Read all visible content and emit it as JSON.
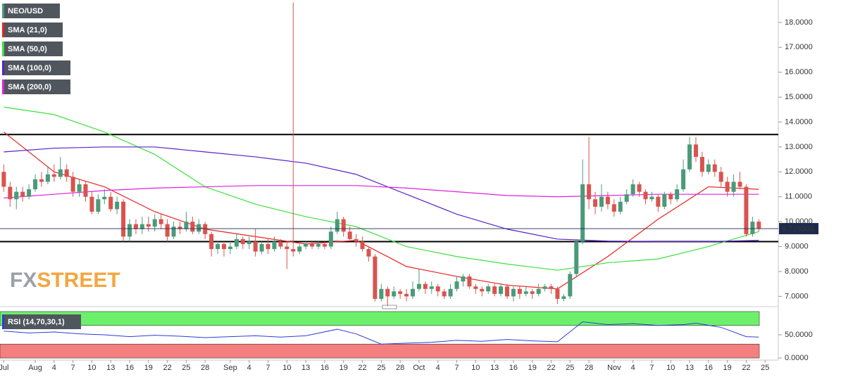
{
  "chart_data": [
    {
      "type": "candlestick",
      "name": "NEO/USD",
      "open": [
        12.0,
        11.4,
        10.9,
        11.2,
        11.0,
        11.3,
        11.7,
        11.6,
        11.9,
        11.8,
        12.1,
        11.8,
        11.2,
        11.5,
        11.0,
        10.4,
        10.9,
        11.0,
        10.5,
        10.8,
        9.4,
        9.9,
        9.7,
        9.9,
        9.8,
        10.1,
        9.9,
        9.4,
        9.8,
        9.7,
        10.0,
        9.6,
        9.9,
        9.5,
        8.9,
        9.1,
        8.9,
        9.0,
        9.3,
        9.1,
        9.2,
        8.8,
        9.1,
        8.9,
        9.2,
        9.0,
        8.9,
        8.8,
        9.0,
        9.1,
        9.0,
        9.1,
        9.0,
        9.6,
        10.1,
        9.6,
        9.3,
        9.2,
        8.9,
        8.6,
        6.9,
        7.3,
        7.0,
        7.2,
        7.1,
        7.0,
        7.3,
        7.5,
        7.3,
        7.4,
        7.2,
        7.0,
        7.3,
        7.6,
        7.8,
        7.4,
        7.3,
        7.2,
        7.4,
        7.1,
        7.4,
        7.0,
        7.3,
        7.1,
        7.2,
        7.1,
        7.3,
        7.4,
        7.3,
        6.9,
        7.0,
        7.9,
        9.2,
        11.5,
        10.9,
        10.6,
        11.0,
        10.7,
        10.4,
        10.8,
        11.1,
        11.5,
        11.2,
        10.9,
        11.0,
        10.6,
        11.1,
        10.9,
        11.3,
        12.1,
        13.1,
        12.6,
        12.0,
        12.3,
        12.0,
        11.6,
        11.2,
        11.6,
        11.4,
        9.5,
        10.0
      ],
      "high": [
        12.3,
        11.6,
        11.4,
        11.4,
        11.5,
        11.9,
        12.0,
        12.2,
        12.3,
        12.6,
        12.3,
        12.0,
        11.7,
        11.6,
        11.2,
        11.1,
        11.3,
        11.2,
        11.0,
        10.9,
        10.1,
        10.1,
        10.2,
        10.2,
        10.3,
        10.3,
        10.1,
        10.0,
        10.0,
        10.4,
        10.2,
        10.1,
        10.0,
        9.6,
        9.2,
        9.2,
        9.2,
        9.5,
        9.4,
        9.4,
        9.7,
        9.2,
        9.3,
        9.4,
        9.3,
        9.2,
        18.8,
        9.1,
        9.2,
        9.2,
        9.2,
        9.2,
        9.8,
        10.4,
        10.2,
        9.8,
        9.5,
        9.4,
        9.0,
        8.7,
        7.5,
        7.4,
        7.4,
        7.3,
        7.3,
        7.6,
        8.1,
        7.6,
        7.6,
        7.5,
        7.3,
        7.5,
        7.8,
        7.9,
        7.9,
        7.5,
        7.4,
        7.5,
        7.5,
        7.5,
        7.5,
        7.4,
        7.4,
        7.4,
        7.3,
        7.5,
        7.5,
        7.5,
        7.4,
        7.1,
        8.0,
        9.3,
        12.5,
        13.4,
        11.2,
        11.5,
        11.2,
        10.9,
        11.0,
        11.3,
        11.7,
        11.6,
        11.3,
        11.2,
        11.1,
        11.2,
        11.2,
        11.5,
        12.5,
        13.4,
        13.4,
        12.8,
        12.5,
        12.5,
        12.2,
        11.8,
        11.9,
        12.0,
        11.5,
        10.2,
        10.1
      ],
      "low": [
        11.2,
        10.6,
        10.5,
        10.8,
        10.9,
        11.2,
        11.4,
        11.5,
        11.6,
        11.7,
        11.6,
        11.0,
        11.0,
        10.8,
        10.3,
        10.3,
        10.7,
        10.4,
        10.3,
        9.2,
        9.2,
        9.5,
        9.5,
        9.6,
        9.6,
        9.7,
        9.2,
        9.3,
        9.5,
        9.6,
        9.5,
        9.5,
        9.3,
        8.6,
        8.7,
        8.6,
        8.7,
        8.9,
        8.9,
        8.9,
        8.6,
        8.7,
        8.7,
        8.8,
        8.9,
        8.1,
        8.6,
        8.7,
        8.9,
        8.9,
        8.9,
        8.9,
        8.9,
        9.5,
        9.4,
        9.2,
        9.0,
        8.8,
        8.4,
        6.8,
        6.8,
        6.6,
        6.9,
        6.9,
        6.8,
        6.9,
        7.2,
        7.1,
        7.1,
        7.0,
        6.9,
        6.9,
        7.2,
        7.4,
        7.3,
        7.1,
        7.0,
        7.1,
        7.0,
        7.0,
        6.9,
        6.8,
        6.9,
        7.0,
        6.9,
        7.0,
        7.2,
        7.1,
        6.7,
        6.8,
        6.9,
        7.8,
        9.1,
        10.5,
        10.3,
        10.4,
        10.5,
        10.2,
        10.3,
        10.7,
        11.0,
        11.0,
        10.7,
        10.8,
        10.4,
        10.5,
        10.7,
        10.8,
        11.2,
        12.0,
        12.4,
        11.8,
        11.9,
        11.8,
        11.4,
        11.0,
        11.0,
        11.3,
        9.4,
        9.4,
        9.6
      ],
      "close": [
        11.4,
        10.9,
        11.2,
        11.0,
        11.3,
        11.7,
        11.6,
        11.9,
        11.8,
        12.1,
        11.8,
        11.2,
        11.5,
        11.0,
        10.4,
        10.9,
        11.0,
        10.5,
        10.8,
        9.4,
        9.9,
        9.7,
        9.9,
        9.8,
        10.1,
        9.9,
        9.4,
        9.8,
        9.7,
        10.0,
        9.6,
        9.9,
        9.5,
        8.9,
        9.1,
        8.9,
        9.0,
        9.3,
        9.1,
        9.2,
        8.8,
        9.1,
        8.9,
        9.2,
        9.0,
        8.9,
        8.8,
        9.0,
        9.1,
        9.0,
        9.1,
        9.0,
        9.6,
        10.1,
        9.6,
        9.3,
        9.2,
        8.9,
        8.6,
        6.9,
        7.3,
        7.0,
        7.2,
        7.1,
        7.0,
        7.3,
        7.5,
        7.3,
        7.4,
        7.2,
        7.0,
        7.3,
        7.6,
        7.8,
        7.4,
        7.3,
        7.2,
        7.4,
        7.1,
        7.4,
        7.0,
        7.3,
        7.1,
        7.2,
        7.1,
        7.3,
        7.4,
        7.3,
        6.9,
        7.0,
        7.9,
        9.2,
        11.5,
        10.9,
        10.6,
        11.0,
        10.7,
        10.4,
        10.8,
        11.1,
        11.5,
        11.2,
        10.9,
        11.0,
        10.6,
        11.1,
        10.9,
        11.3,
        12.1,
        13.1,
        12.6,
        12.0,
        12.3,
        12.0,
        11.6,
        11.2,
        11.6,
        11.4,
        9.5,
        10.0,
        9.72
      ],
      "up_color": "#4a9a7a",
      "down_color": "#d9534f",
      "xlim": [
        -0.6,
        123.1
      ],
      "ylim": [
        6.7,
        18.9
      ],
      "yticks": [
        {
          "value": 7,
          "label": "7.0000"
        },
        {
          "value": 8,
          "label": "8.0000"
        },
        {
          "value": 9,
          "label": "9.0000"
        },
        {
          "value": 10,
          "label": "10.0000"
        },
        {
          "value": 11,
          "label": "11.0000"
        },
        {
          "value": 12,
          "label": "12.0000"
        },
        {
          "value": 13,
          "label": "13.0000"
        },
        {
          "value": 14,
          "label": "14.0000"
        },
        {
          "value": 15,
          "label": "15.0000"
        },
        {
          "value": 16,
          "label": "16.0000"
        },
        {
          "value": 17,
          "label": "17.0000"
        },
        {
          "value": 18,
          "label": "18.0000"
        }
      ],
      "xticks": [
        {
          "value": 0,
          "label": "Jul"
        },
        {
          "value": 5,
          "label": "Aug"
        },
        {
          "value": 8,
          "label": "4"
        },
        {
          "value": 11,
          "label": "7"
        },
        {
          "value": 14,
          "label": "10"
        },
        {
          "value": 17,
          "label": "13"
        },
        {
          "value": 20,
          "label": "16"
        },
        {
          "value": 23,
          "label": "19"
        },
        {
          "value": 26,
          "label": "22"
        },
        {
          "value": 29,
          "label": "25"
        },
        {
          "value": 32,
          "label": "28"
        },
        {
          "value": 36,
          "label": "Sep"
        },
        {
          "value": 39,
          "label": "4"
        },
        {
          "value": 42,
          "label": "7"
        },
        {
          "value": 45,
          "label": "10"
        },
        {
          "value": 48,
          "label": "13"
        },
        {
          "value": 51,
          "label": "16"
        },
        {
          "value": 54,
          "label": "19"
        },
        {
          "value": 57,
          "label": "22"
        },
        {
          "value": 60,
          "label": "25"
        },
        {
          "value": 63,
          "label": "28"
        },
        {
          "value": 66,
          "label": "Oct"
        },
        {
          "value": 69,
          "label": "4"
        },
        {
          "value": 72,
          "label": "7"
        },
        {
          "value": 75,
          "label": "10"
        },
        {
          "value": 78,
          "label": "13"
        },
        {
          "value": 81,
          "label": "16"
        },
        {
          "value": 84,
          "label": "19"
        },
        {
          "value": 87,
          "label": "22"
        },
        {
          "value": 90,
          "label": "25"
        },
        {
          "value": 93,
          "label": "28"
        },
        {
          "value": 97,
          "label": "Nov"
        },
        {
          "value": 100,
          "label": "4"
        },
        {
          "value": 103,
          "label": "7"
        },
        {
          "value": 106,
          "label": "10"
        },
        {
          "value": 109,
          "label": "13"
        },
        {
          "value": 112,
          "label": "16"
        },
        {
          "value": 115,
          "label": "19"
        },
        {
          "value": 118,
          "label": "22"
        },
        {
          "value": 121,
          "label": "25"
        }
      ],
      "levels": [
        13.5,
        9.2
      ],
      "level_color": "#000000",
      "last_price": {
        "value": 9.7193,
        "label": "9.719300"
      },
      "last_price_color": "#1e2b50",
      "watermark": [
        "FX",
        "STREET"
      ],
      "overlays": {
        "x": [
          0,
          8,
          16,
          24,
          32,
          40,
          48,
          56,
          64,
          72,
          80,
          88,
          96,
          104,
          112,
          120
        ],
        "series": [
          {
            "name": "SMA (21,0)",
            "color": "#e8231f",
            "values": [
              13.6,
              12.0,
              11.4,
              10.4,
              9.7,
              9.4,
              9.1,
              9.25,
              8.2,
              7.8,
              7.45,
              7.3,
              8.6,
              10.1,
              11.4,
              11.3
            ]
          },
          {
            "name": "SMA (50,0)",
            "color": "#3ee03e",
            "values": [
              14.6,
              14.3,
              13.6,
              12.7,
              11.4,
              10.7,
              10.2,
              9.8,
              9.0,
              8.6,
              8.3,
              8.05,
              8.35,
              8.5,
              9.0,
              9.6
            ]
          },
          {
            "name": "SMA (100,0)",
            "color": "#5a22c8",
            "values": [
              12.8,
              12.95,
              13.0,
              13.0,
              12.8,
              12.6,
              12.35,
              11.9,
              11.1,
              10.3,
              9.7,
              9.3,
              9.22,
              9.2,
              9.2,
              9.25
            ]
          },
          {
            "name": "SMA (200,0)",
            "color": "#e020e0",
            "values": [
              10.95,
              11.1,
              11.25,
              11.35,
              11.4,
              11.45,
              11.45,
              11.45,
              11.35,
              11.2,
              11.05,
              11.0,
              11.05,
              11.1,
              11.1,
              11.1
            ]
          }
        ]
      }
    },
    {
      "type": "line",
      "name": "RSI (14,70,30,1)",
      "color": "#2a3fd8",
      "x": [
        0,
        4,
        8,
        12,
        16,
        20,
        24,
        28,
        32,
        36,
        40,
        44,
        48,
        53,
        56,
        60,
        64,
        68,
        72,
        76,
        80,
        84,
        88,
        92,
        96,
        100,
        104,
        108,
        110,
        114,
        118,
        120
      ],
      "values": [
        58,
        54,
        56,
        52,
        50,
        46,
        49,
        47,
        44,
        46,
        48,
        45,
        48,
        62,
        52,
        30,
        32,
        34,
        38,
        36,
        40,
        37,
        35,
        78,
        72,
        74,
        70,
        72,
        75,
        66,
        46,
        45
      ],
      "xlim": [
        -0.6,
        123.1
      ],
      "ylim": [
        -4.5,
        104.5
      ],
      "yticks": [
        {
          "value": 0,
          "label": "0.0000"
        },
        {
          "value": 50,
          "label": "50.0000"
        }
      ],
      "bands": [
        {
          "from": 70,
          "to": 100,
          "color": "#6cf06c"
        },
        {
          "from": 0,
          "to": 30,
          "color": "#f57f7f"
        }
      ]
    }
  ]
}
